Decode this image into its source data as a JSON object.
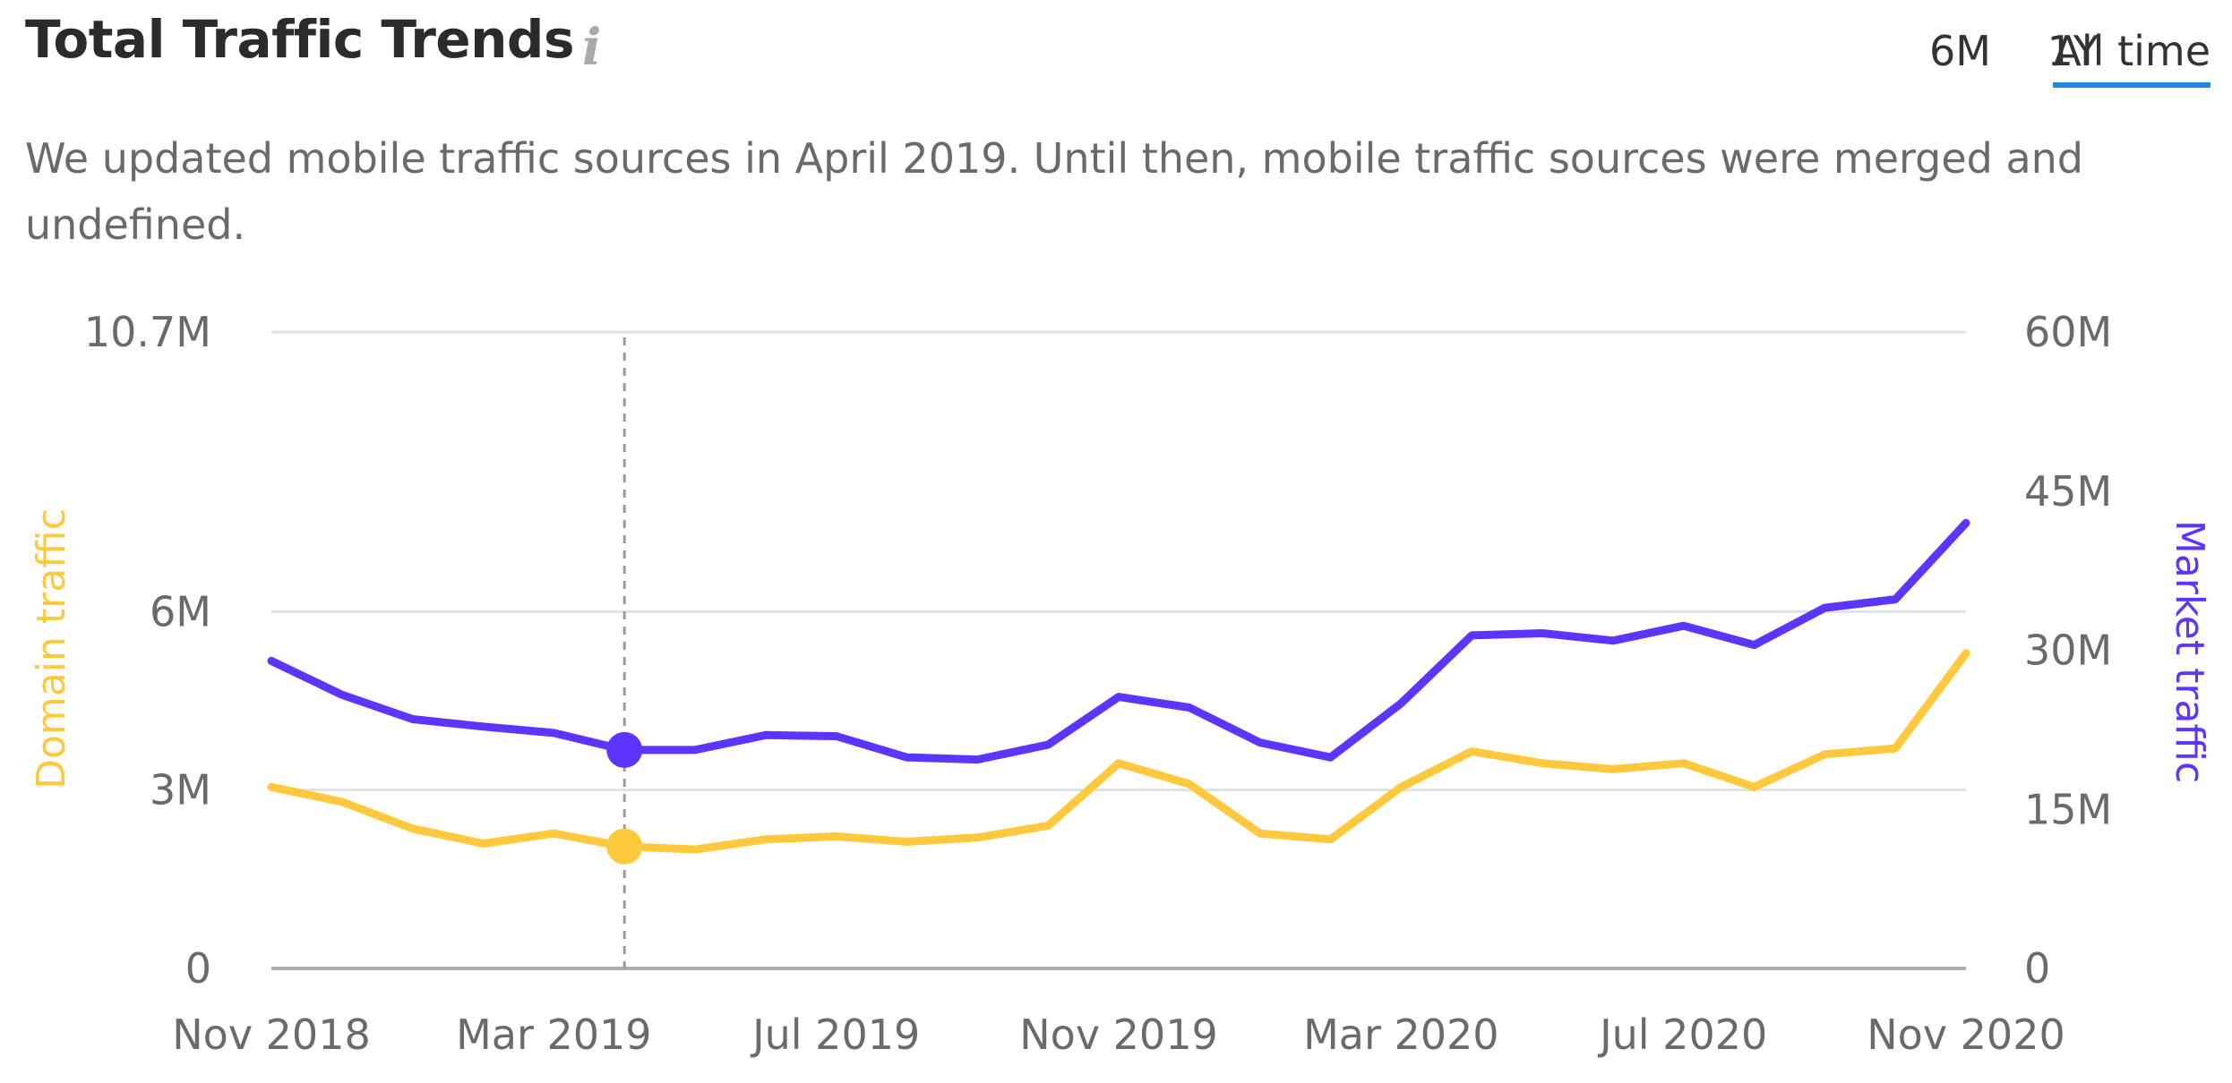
{
  "header": {
    "title": "Total Traffic Trends",
    "info_icon": "info-icon",
    "tabs": [
      {
        "label": "6M",
        "active": false
      },
      {
        "label": "1Y",
        "active": false
      },
      {
        "label": "All time",
        "active": true
      }
    ]
  },
  "note": "We updated mobile traffic sources in April 2019. Until then, mobile traffic sources were merged and undefined.",
  "colors": {
    "domain": "#FFC83D",
    "market": "#5C35FF",
    "active_tab_underline": "#1E88E5"
  },
  "chart_data": {
    "type": "line",
    "x": [
      "Nov 2018",
      "Dec 2018",
      "Jan 2019",
      "Feb 2019",
      "Mar 2019",
      "Apr 2019",
      "May 2019",
      "Jun 2019",
      "Jul 2019",
      "Aug 2019",
      "Sep 2019",
      "Oct 2019",
      "Nov 2019",
      "Dec 2019",
      "Jan 2020",
      "Feb 2020",
      "Mar 2020",
      "Apr 2020",
      "May 2020",
      "Jun 2020",
      "Jul 2020",
      "Aug 2020",
      "Sep 2020",
      "Oct 2020",
      "Nov 2020"
    ],
    "x_tick_labels": [
      "Nov 2018",
      "Mar 2019",
      "Jul 2019",
      "Nov 2019",
      "Mar 2020",
      "Jul 2020",
      "Nov 2020"
    ],
    "series": [
      {
        "name": "Domain traffic",
        "axis": "left",
        "values": [
          3.05,
          2.8,
          2.35,
          2.1,
          2.27,
          2.05,
          2.0,
          2.17,
          2.22,
          2.13,
          2.2,
          2.4,
          3.45,
          3.1,
          2.27,
          2.17,
          3.05,
          3.65,
          3.45,
          3.35,
          3.45,
          3.05,
          3.6,
          3.7,
          5.3
        ]
      },
      {
        "name": "Market traffic",
        "axis": "right",
        "values": [
          29,
          25.8,
          23.5,
          22.8,
          22.2,
          20.6,
          20.6,
          22.0,
          21.9,
          19.9,
          19.7,
          21.1,
          25.6,
          24.6,
          21.3,
          19.9,
          25.0,
          31.4,
          31.6,
          30.9,
          32.3,
          30.5,
          34.0,
          34.8,
          42.0
        ]
      }
    ],
    "left_axis": {
      "label": "Domain traffic",
      "ticks": [
        "0",
        "3M",
        "6M",
        "10.7M"
      ],
      "tick_values": [
        0,
        3,
        6,
        10.7
      ],
      "ylim": [
        0,
        10.7
      ]
    },
    "right_axis": {
      "label": "Market traffic",
      "ticks": [
        "0",
        "15M",
        "30M",
        "45M",
        "60M"
      ],
      "tick_values": [
        0,
        15,
        30,
        45,
        60
      ],
      "ylim": [
        0,
        60
      ]
    },
    "highlight_index": 5,
    "grid": true,
    "legend": "none"
  }
}
